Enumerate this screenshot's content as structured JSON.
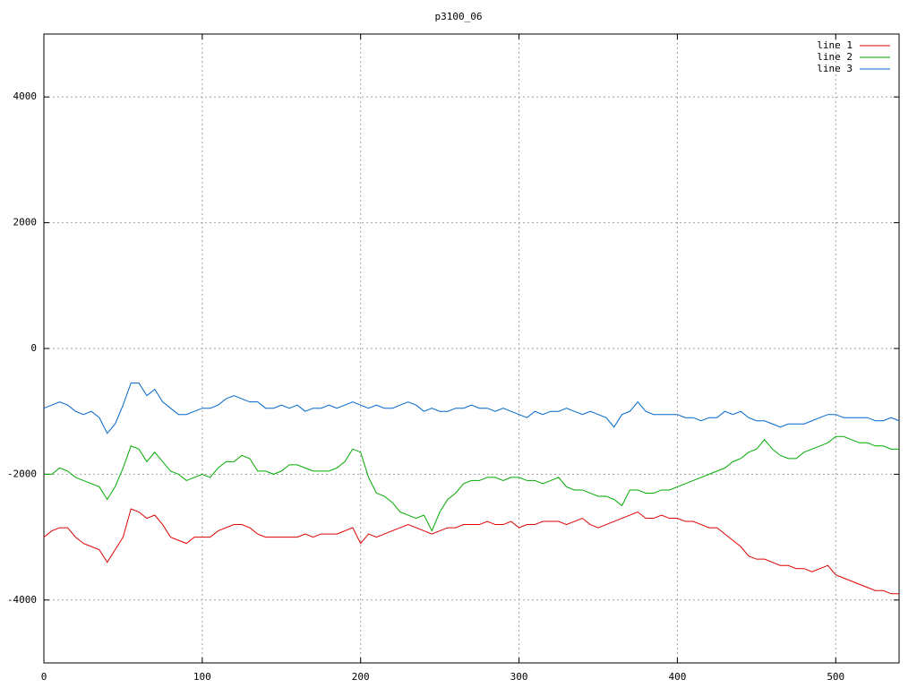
{
  "chart_data": {
    "type": "line",
    "title": "p3100_06",
    "x": [
      0,
      5,
      10,
      15,
      20,
      25,
      30,
      35,
      40,
      45,
      50,
      55,
      60,
      65,
      70,
      75,
      80,
      85,
      90,
      95,
      100,
      105,
      110,
      115,
      120,
      125,
      130,
      135,
      140,
      145,
      150,
      155,
      160,
      165,
      170,
      175,
      180,
      185,
      190,
      195,
      200,
      205,
      210,
      215,
      220,
      225,
      230,
      235,
      240,
      245,
      250,
      255,
      260,
      265,
      270,
      275,
      280,
      285,
      290,
      295,
      300,
      305,
      310,
      315,
      320,
      325,
      330,
      335,
      340,
      345,
      350,
      355,
      360,
      365,
      370,
      375,
      380,
      385,
      390,
      395,
      400,
      405,
      410,
      415,
      420,
      425,
      430,
      435,
      440,
      445,
      450,
      455,
      460,
      465,
      470,
      475,
      480,
      485,
      490,
      495,
      500,
      505,
      510,
      515,
      520,
      525,
      530,
      535,
      540
    ],
    "series": [
      {
        "name": "line 1",
        "color": "#dd0000",
        "values": [
          -3000,
          -2900,
          -2850,
          -2850,
          -3000,
          -3100,
          -3150,
          -3200,
          -3400,
          -3200,
          -3000,
          -2550,
          -2600,
          -2700,
          -2650,
          -2800,
          -3000,
          -3050,
          -3100,
          -3000,
          -3000,
          -3000,
          -2900,
          -2850,
          -2800,
          -2800,
          -2850,
          -2950,
          -3000,
          -3000,
          -3000,
          -3000,
          -3000,
          -2950,
          -3000,
          -2950,
          -2950,
          -2950,
          -2900,
          -2850,
          -3100,
          -2950,
          -3000,
          -2950,
          -2900,
          -2850,
          -2800,
          -2850,
          -2900,
          -2950,
          -2900,
          -2850,
          -2850,
          -2800,
          -2800,
          -2800,
          -2750,
          -2800,
          -2800,
          -2750,
          -2850,
          -2800,
          -2800,
          -2750,
          -2750,
          -2750,
          -2800,
          -2750,
          -2700,
          -2800,
          -2850,
          -2800,
          -2750,
          -2700,
          -2650,
          -2600,
          -2700,
          -2700,
          -2650,
          -2700,
          -2700,
          -2750,
          -2750,
          -2800,
          -2850,
          -2850,
          -2950,
          -3050,
          -3150,
          -3300,
          -3350,
          -3350,
          -3400,
          -3450,
          -3450,
          -3500,
          -3500,
          -3550,
          -3500,
          -3450,
          -3600,
          -3650,
          -3700,
          -3750,
          -3800,
          -3850,
          -3850,
          -3900,
          -3900
        ]
      },
      {
        "name": "line 2",
        "color": "#00aa00",
        "values": [
          -2000,
          -2000,
          -1900,
          -1950,
          -2050,
          -2100,
          -2150,
          -2200,
          -2400,
          -2200,
          -1900,
          -1550,
          -1600,
          -1800,
          -1650,
          -1800,
          -1950,
          -2000,
          -2100,
          -2050,
          -2000,
          -2050,
          -1900,
          -1800,
          -1800,
          -1700,
          -1750,
          -1950,
          -1950,
          -2000,
          -1950,
          -1850,
          -1850,
          -1900,
          -1950,
          -1950,
          -1950,
          -1900,
          -1800,
          -1600,
          -1650,
          -2050,
          -2300,
          -2350,
          -2450,
          -2600,
          -2650,
          -2700,
          -2650,
          -2900,
          -2600,
          -2400,
          -2300,
          -2150,
          -2100,
          -2100,
          -2050,
          -2050,
          -2100,
          -2050,
          -2050,
          -2100,
          -2100,
          -2150,
          -2100,
          -2050,
          -2200,
          -2250,
          -2250,
          -2300,
          -2350,
          -2350,
          -2400,
          -2500,
          -2250,
          -2250,
          -2300,
          -2300,
          -2250,
          -2250,
          -2200,
          -2150,
          -2100,
          -2050,
          -2000,
          -1950,
          -1900,
          -1800,
          -1750,
          -1650,
          -1600,
          -1450,
          -1600,
          -1700,
          -1750,
          -1750,
          -1650,
          -1600,
          -1550,
          -1500,
          -1400,
          -1400,
          -1450,
          -1500,
          -1500,
          -1550,
          -1550,
          -1600,
          -1600
        ]
      },
      {
        "name": "line 3",
        "color": "#0066cc",
        "values": [
          -950,
          -900,
          -850,
          -900,
          -1000,
          -1050,
          -1000,
          -1100,
          -1350,
          -1200,
          -900,
          -550,
          -550,
          -750,
          -650,
          -850,
          -950,
          -1050,
          -1050,
          -1000,
          -950,
          -950,
          -900,
          -800,
          -750,
          -800,
          -850,
          -850,
          -950,
          -950,
          -900,
          -950,
          -900,
          -1000,
          -950,
          -950,
          -900,
          -950,
          -900,
          -850,
          -900,
          -950,
          -900,
          -950,
          -950,
          -900,
          -850,
          -900,
          -1000,
          -950,
          -1000,
          -1000,
          -950,
          -950,
          -900,
          -950,
          -950,
          -1000,
          -950,
          -1000,
          -1050,
          -1100,
          -1000,
          -1050,
          -1000,
          -1000,
          -950,
          -1000,
          -1050,
          -1000,
          -1050,
          -1100,
          -1250,
          -1050,
          -1000,
          -850,
          -1000,
          -1050,
          -1050,
          -1050,
          -1050,
          -1100,
          -1100,
          -1150,
          -1100,
          -1100,
          -1000,
          -1050,
          -1000,
          -1100,
          -1150,
          -1150,
          -1200,
          -1250,
          -1200,
          -1200,
          -1200,
          -1150,
          -1100,
          -1050,
          -1050,
          -1100,
          -1100,
          -1100,
          -1100,
          -1150,
          -1150,
          -1100,
          -1150
        ]
      }
    ],
    "xlim": [
      0,
      540
    ],
    "ylim": [
      -5000,
      5000
    ],
    "xticks": [
      0,
      100,
      200,
      300,
      400,
      500
    ],
    "yticks": [
      -4000,
      -2000,
      0,
      2000,
      4000
    ],
    "grid": true,
    "legend": "upper right"
  }
}
